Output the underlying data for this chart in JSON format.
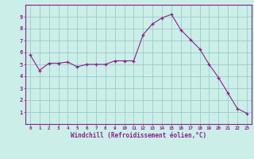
{
  "x": [
    0,
    1,
    2,
    3,
    4,
    5,
    6,
    7,
    8,
    9,
    10,
    11,
    12,
    13,
    14,
    15,
    16,
    17,
    18,
    19,
    20,
    21,
    22,
    23
  ],
  "y": [
    5.8,
    4.5,
    5.1,
    5.1,
    5.2,
    4.8,
    5.0,
    5.0,
    5.0,
    5.3,
    5.3,
    5.3,
    7.5,
    8.4,
    8.9,
    9.2,
    7.9,
    7.1,
    6.3,
    5.0,
    3.9,
    2.6,
    1.3,
    0.9
  ],
  "line_color": "#882288",
  "marker": "+",
  "bg_color": "#cceee8",
  "grid_color": "#99cccc",
  "xlabel": "Windchill (Refroidissement éolien,°C)",
  "xlim": [
    -0.5,
    23.5
  ],
  "ylim": [
    0,
    10
  ],
  "xticks": [
    0,
    1,
    2,
    3,
    4,
    5,
    6,
    7,
    8,
    9,
    10,
    11,
    12,
    13,
    14,
    15,
    16,
    17,
    18,
    19,
    20,
    21,
    22,
    23
  ],
  "yticks": [
    1,
    2,
    3,
    4,
    5,
    6,
    7,
    8,
    9
  ],
  "tick_color": "#882288",
  "label_color": "#882288",
  "spine_color": "#882288"
}
